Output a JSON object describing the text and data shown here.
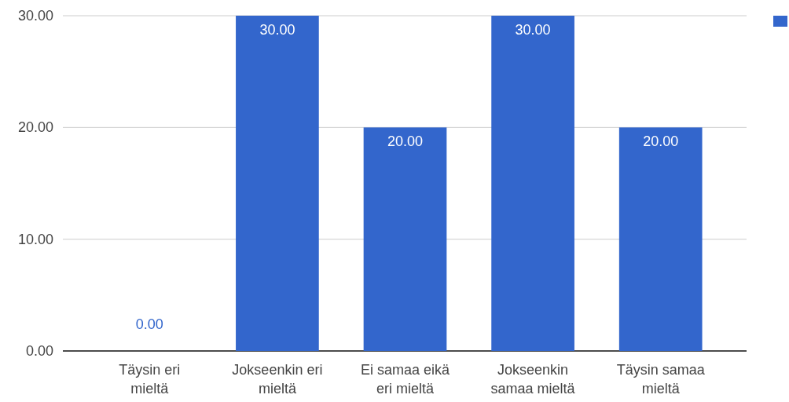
{
  "chart_data": {
    "type": "bar",
    "categories": [
      "Täysin eri mieltä",
      "Jokseenkin eri mieltä",
      "Ei samaa eikä eri mieltä",
      "Jokseenkin samaa mieltä",
      "Täysin samaa mieltä"
    ],
    "series": [
      {
        "color": "#3366cc",
        "values": [
          0,
          30,
          20,
          30,
          20
        ],
        "value_labels": [
          "0.00",
          "30.00",
          "20.00",
          "30.00",
          "20.00"
        ]
      }
    ],
    "ylim": [
      0,
      30
    ],
    "yticks": [
      {
        "value": 0,
        "label": "0.00"
      },
      {
        "value": 10,
        "label": "10.00"
      },
      {
        "value": 20,
        "label": "20.00"
      },
      {
        "value": 30,
        "label": "30.00"
      }
    ],
    "grid": "y"
  }
}
